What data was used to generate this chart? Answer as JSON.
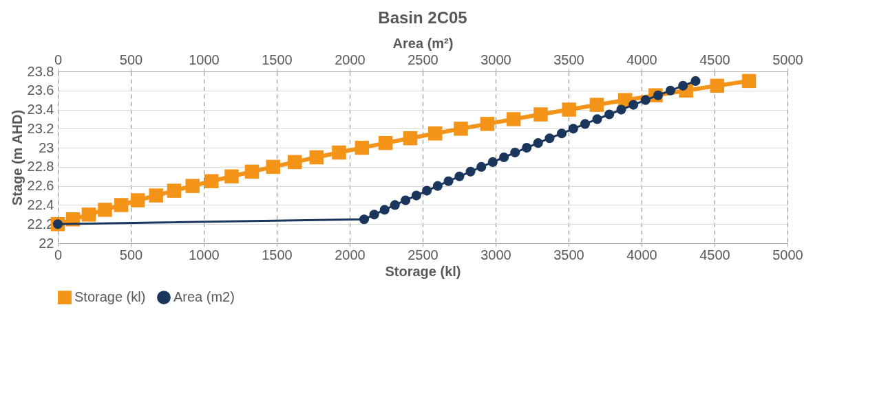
{
  "chart_data": {
    "type": "line",
    "title": "Basin 2C05",
    "xlabel": "Storage (kl)",
    "x2label": "Area (m²)",
    "ylabel": "Stage (m AHD)",
    "xlim": [
      0,
      5000
    ],
    "xticks": [
      0,
      500,
      1000,
      1500,
      2000,
      2500,
      3000,
      3500,
      4000,
      4500,
      5000
    ],
    "x2lim": [
      0,
      5000
    ],
    "x2ticks": [
      0,
      500,
      1000,
      1500,
      2000,
      2500,
      3000,
      3500,
      4000,
      4500,
      5000
    ],
    "ylim": [
      22,
      23.8
    ],
    "yticks": [
      22,
      22.2,
      22.4,
      22.6,
      22.8,
      23,
      23.2,
      23.4,
      23.6,
      23.8
    ],
    "grid": true,
    "legend": "bottom",
    "line_style": "solid",
    "series": [
      {
        "name": "Storage (kl)",
        "color": "#f39419",
        "marker": "square",
        "x": [
          0,
          104,
          212,
          323,
          435,
          548,
          673,
          797,
          923,
          1053,
          1191,
          1330,
          1475,
          1624,
          1773,
          1927,
          2084,
          2246,
          2415,
          2586,
          2762,
          2943,
          3123,
          3309,
          3503,
          3693,
          3888,
          4096,
          4305,
          4518,
          4736
        ],
        "values": [
          22.2,
          22.25,
          22.3,
          22.35,
          22.4,
          22.45,
          22.5,
          22.55,
          22.6,
          22.65,
          22.7,
          22.75,
          22.8,
          22.85,
          22.9,
          22.95,
          23.0,
          23.05,
          23.1,
          23.15,
          23.2,
          23.25,
          23.3,
          23.35,
          23.4,
          23.45,
          23.5,
          23.55,
          23.6,
          23.65,
          23.7
        ]
      },
      {
        "name": "Area (m2)",
        "color": "#1b365d",
        "marker": "circle",
        "axis": "x2",
        "x": [
          0,
          2099,
          2168,
          2239,
          2310,
          2383,
          2457,
          2529,
          2603,
          2677,
          2752,
          2828,
          2902,
          2980,
          3057,
          3133,
          3213,
          3291,
          3370,
          3453,
          3532,
          3613,
          3696,
          3779,
          3861,
          3944,
          4027,
          4113,
          4198,
          4284,
          4370
        ],
        "values": [
          22.2,
          22.25,
          22.3,
          22.35,
          22.4,
          22.45,
          22.5,
          22.55,
          22.6,
          22.65,
          22.7,
          22.75,
          22.8,
          22.85,
          22.9,
          22.95,
          23.0,
          23.05,
          23.1,
          23.15,
          23.2,
          23.25,
          23.3,
          23.35,
          23.4,
          23.45,
          23.5,
          23.55,
          23.6,
          23.65,
          23.7
        ]
      }
    ]
  }
}
